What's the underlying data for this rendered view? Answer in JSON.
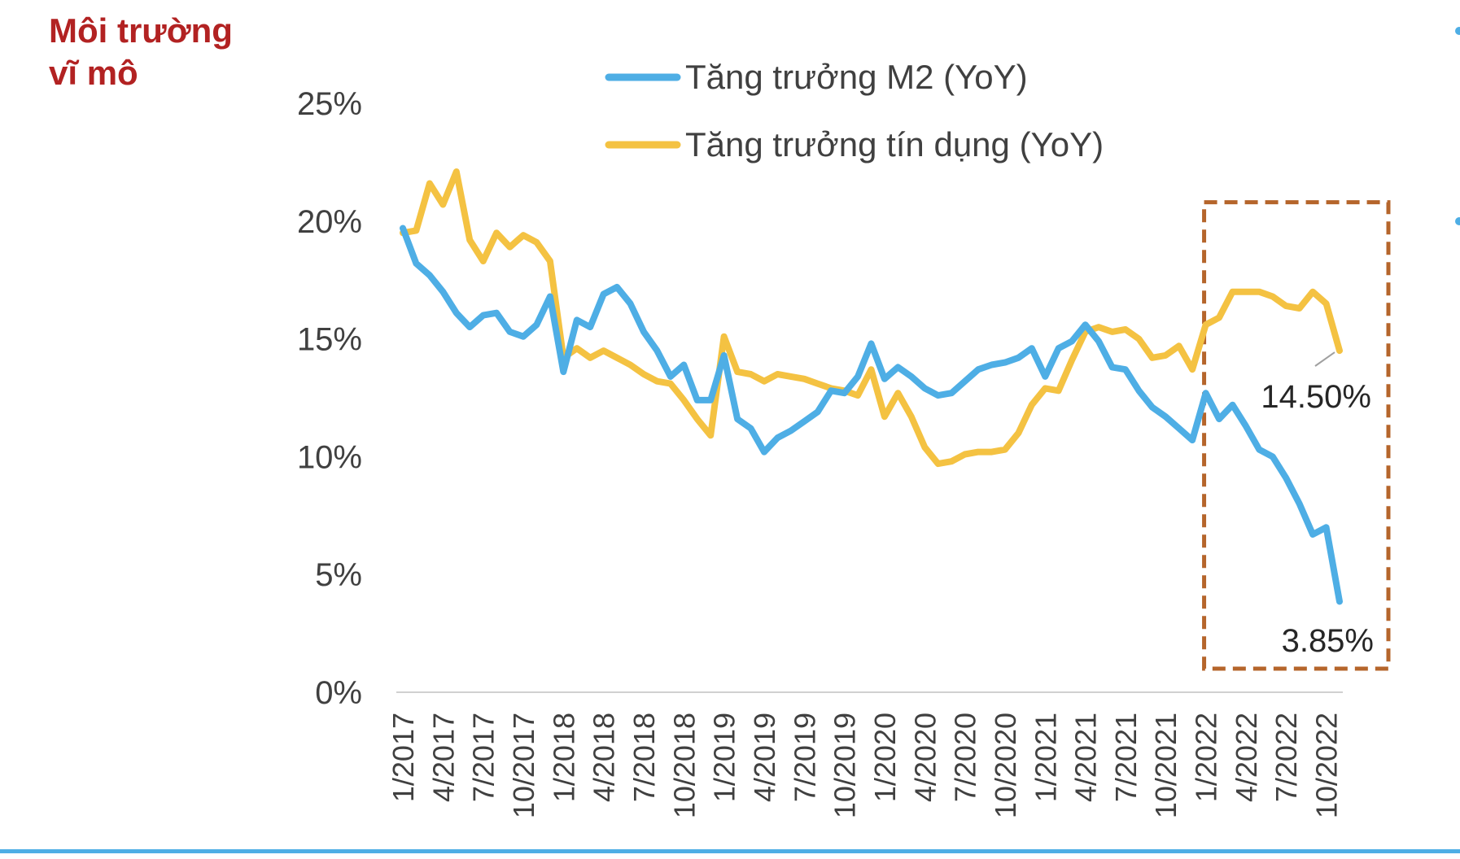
{
  "slide": {
    "section_title": [
      "Môi trường",
      "vĩ mô"
    ]
  },
  "chart_data": {
    "type": "line",
    "y_ticks": [
      "0%",
      "5%",
      "10%",
      "15%",
      "20%",
      "25%"
    ],
    "ylim": [
      0,
      25
    ],
    "grid": false,
    "legend_position": "top",
    "x_tick_labels": [
      "1/2017",
      "4/2017",
      "7/2017",
      "10/2017",
      "1/2018",
      "4/2018",
      "7/2018",
      "10/2018",
      "1/2019",
      "4/2019",
      "7/2019",
      "10/2019",
      "1/2020",
      "4/2020",
      "7/2020",
      "10/2020",
      "1/2021",
      "4/2021",
      "7/2021",
      "10/2021",
      "1/2022",
      "4/2022",
      "7/2022",
      "10/2022"
    ],
    "series": [
      {
        "name": "Tăng trưởng M2 (YoY)",
        "color": "#4eaee5",
        "values": [
          19.7,
          18.2,
          17.7,
          17.0,
          16.1,
          15.5,
          16.0,
          16.1,
          15.3,
          15.1,
          15.6,
          16.8,
          13.6,
          15.8,
          15.5,
          16.9,
          17.2,
          16.5,
          15.3,
          14.5,
          13.4,
          13.9,
          12.4,
          12.4,
          14.3,
          11.6,
          11.2,
          10.2,
          10.8,
          11.1,
          11.5,
          11.9,
          12.8,
          12.7,
          13.4,
          14.8,
          13.3,
          13.8,
          13.4,
          12.9,
          12.6,
          12.7,
          13.2,
          13.7,
          13.9,
          14.0,
          14.2,
          14.6,
          13.4,
          14.6,
          14.9,
          15.6,
          14.9,
          13.8,
          13.7,
          12.8,
          12.1,
          11.7,
          11.2,
          10.7,
          12.7,
          11.6,
          12.2,
          11.3,
          10.3,
          10.0,
          9.1,
          8.0,
          6.7,
          7.0,
          3.85
        ]
      },
      {
        "name": "Tăng trưởng tín dụng (YoY)",
        "color": "#f4c242",
        "values": [
          19.5,
          19.6,
          21.6,
          20.7,
          22.1,
          19.2,
          18.3,
          19.5,
          18.9,
          19.4,
          19.1,
          18.3,
          14.2,
          14.6,
          14.2,
          14.5,
          14.2,
          13.9,
          13.5,
          13.2,
          13.1,
          12.4,
          11.6,
          10.9,
          15.1,
          13.6,
          13.5,
          13.2,
          13.5,
          13.4,
          13.3,
          13.1,
          12.9,
          12.8,
          12.6,
          13.7,
          11.7,
          12.7,
          11.7,
          10.4,
          9.7,
          9.8,
          10.1,
          10.2,
          10.2,
          10.3,
          11.0,
          12.2,
          12.9,
          12.8,
          14.1,
          15.3,
          15.5,
          15.3,
          15.4,
          15.0,
          14.2,
          14.3,
          14.7,
          13.7,
          15.6,
          15.9,
          17.0,
          17.0,
          17.0,
          16.8,
          16.4,
          16.3,
          17.0,
          16.5,
          14.5
        ]
      }
    ],
    "annotations": [
      {
        "text": "14.50%",
        "series": 1
      },
      {
        "text": "3.85%",
        "series": 0
      }
    ],
    "highlight_box": {
      "color": "#b5652b",
      "from_index": 60,
      "to_index": 70
    },
    "axis_color": "#d0d0d0",
    "text_color": "#404040"
  }
}
